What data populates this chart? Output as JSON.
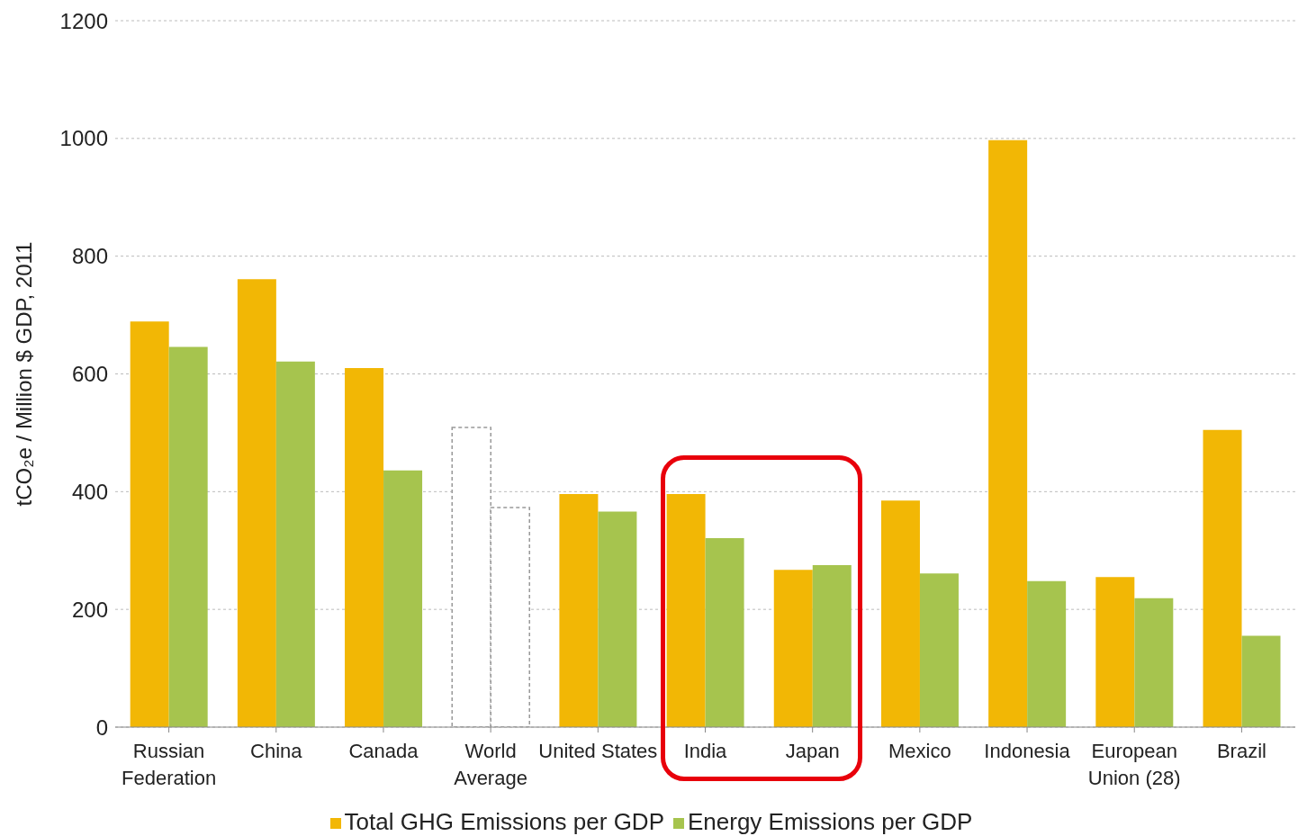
{
  "chart_data": {
    "type": "bar",
    "ylabel": "tCO₂e / Million $ GDP, 2011",
    "categories": [
      "Russian\nFederation",
      "China",
      "Canada",
      "World\nAverage",
      "United States",
      "India",
      "Japan",
      "Mexico",
      "Indonesia",
      "European\nUnion (28)",
      "Brazil"
    ],
    "series": [
      {
        "name": "Total GHG Emissions per GDP",
        "color": "#f2b705",
        "colors": [
          "#f2b705",
          "#f2b705",
          "#f2b705",
          "#ffffff",
          "#f2b705",
          "#f2b705",
          "#f2b705",
          "#f2b705",
          "#f2b705",
          "#f2b705",
          "#f2b705"
        ],
        "values": [
          689,
          761,
          610,
          509,
          396,
          396,
          267,
          385,
          997,
          255,
          505
        ]
      },
      {
        "name": "Energy Emissions per GDP",
        "color": "#a6c44e",
        "colors": [
          "#a6c44e",
          "#a6c44e",
          "#a6c44e",
          "#ffffff",
          "#a6c44e",
          "#a6c44e",
          "#a6c44e",
          "#a6c44e",
          "#a6c44e",
          "#a6c44e",
          "#a6c44e"
        ],
        "values": [
          646,
          621,
          436,
          373,
          366,
          321,
          275,
          261,
          248,
          219,
          155
        ]
      }
    ],
    "ylim": [
      0,
      1200
    ],
    "yticks": [
      0,
      200,
      400,
      600,
      800,
      1000,
      1200
    ],
    "grid": "y",
    "legend": "bottom"
  }
}
